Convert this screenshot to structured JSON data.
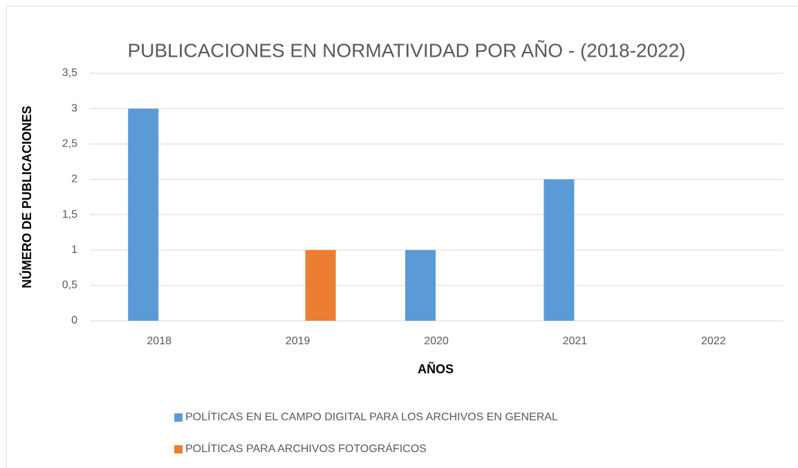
{
  "chart_data": {
    "type": "bar",
    "title": "PUBLICACIONES EN NORMATIVIDAD POR AÑO - (2018-2022)",
    "x_label": "AÑOS",
    "y_label": "NÚMERO DE PUBLICACIONES",
    "categories": [
      "2018",
      "2019",
      "2020",
      "2021",
      "2022"
    ],
    "series": [
      {
        "name": "POLÍTICAS EN EL CAMPO DIGITAL PARA LOS ARCHIVOS EN GENERAL",
        "color": "#5b9bd5",
        "values": [
          3,
          0,
          1,
          2,
          0
        ]
      },
      {
        "name": "POLÍTICAS  PARA ARCHIVOS FOTOGRÁFICOS",
        "color": "#ed7d31",
        "values": [
          0,
          1,
          0,
          0,
          0
        ]
      }
    ],
    "ylim": [
      0,
      3.5
    ],
    "yticks": [
      0,
      {
        "value": 0.5,
        "label": "0,5"
      },
      1,
      {
        "value": 1.5,
        "label": "1,5"
      },
      2,
      {
        "value": 2.5,
        "label": "2,5"
      },
      3,
      {
        "value": 3.5,
        "label": "3,5"
      }
    ],
    "grid": true,
    "legend": "bottom"
  }
}
